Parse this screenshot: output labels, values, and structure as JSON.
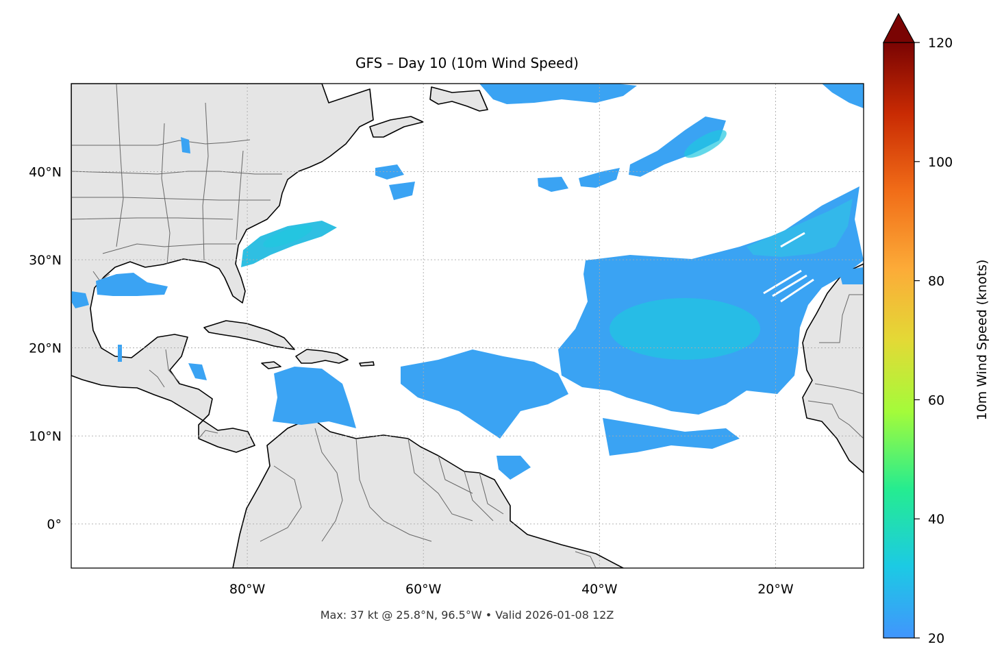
{
  "title": "GFS – Day 10 (10m Wind Speed)",
  "footer": "Max: 37 kt @ 25.8°N, 96.5°W • Valid 2026-01-08 12Z",
  "map": {
    "projection": "PlateCarree",
    "lon_range": [
      -100,
      -10
    ],
    "lat_range": [
      -5,
      50
    ],
    "lat_ticks": [
      {
        "value": 40,
        "label": "40°N"
      },
      {
        "value": 30,
        "label": "30°N"
      },
      {
        "value": 20,
        "label": "20°N"
      },
      {
        "value": 10,
        "label": "10°N"
      },
      {
        "value": 0,
        "label": "0°"
      }
    ],
    "lon_ticks": [
      {
        "value": -80,
        "label": "80°W"
      },
      {
        "value": -60,
        "label": "60°W"
      },
      {
        "value": -40,
        "label": "40°W"
      },
      {
        "value": -20,
        "label": "20°W"
      }
    ],
    "land_color": "#e5e5e5",
    "coast_color": "#000000",
    "border_color": "#666666",
    "grid": "dotted"
  },
  "colorbar": {
    "label": "10m Wind Speed (knots)",
    "range": [
      20,
      120
    ],
    "extend": "max",
    "ticks": [
      {
        "value": 120,
        "label": "120"
      },
      {
        "value": 100,
        "label": "100"
      },
      {
        "value": 80,
        "label": "80"
      },
      {
        "value": 60,
        "label": "60"
      },
      {
        "value": 40,
        "label": "40"
      },
      {
        "value": 20,
        "label": "20"
      }
    ],
    "colors": [
      "#4195fd",
      "#1ccae4",
      "#25ec90",
      "#a4fb3a",
      "#e3d936",
      "#fcab38",
      "#f16d18",
      "#c92b03",
      "#7a0403"
    ]
  },
  "wind_fields": [
    {
      "region": "central-atlantic",
      "speed_kt": 28
    },
    {
      "region": "east-atlantic-streaks",
      "speed_kt": 27
    },
    {
      "region": "north-atlantic",
      "speed_kt": 25
    },
    {
      "region": "south-of-carolinas",
      "speed_kt": 28
    },
    {
      "region": "gulf-of-mexico",
      "speed_kt": 25
    },
    {
      "region": "caribbean",
      "speed_kt": 23
    },
    {
      "region": "tropical-atlantic",
      "speed_kt": 23
    }
  ]
}
